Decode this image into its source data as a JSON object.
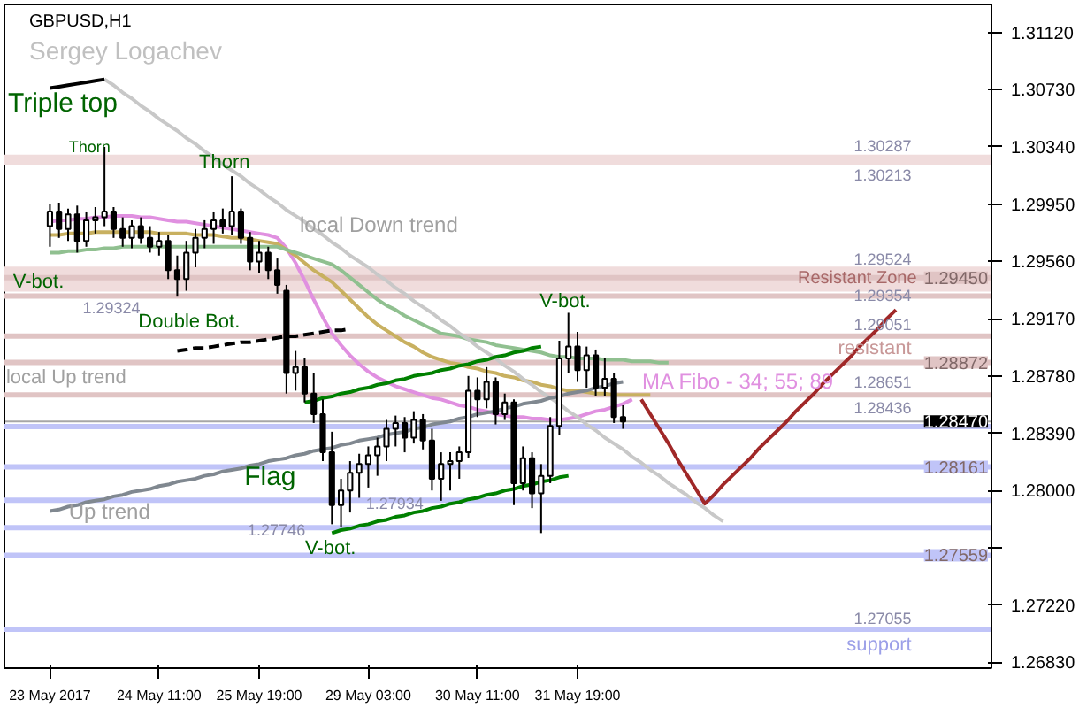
{
  "chart_data": {
    "type": "candlestick",
    "title": "GBPUSD,H1",
    "subtitle": "Sergey Logachev",
    "categories": [
      "23 May 2017",
      null,
      null,
      null,
      null,
      null,
      null,
      null,
      null,
      null,
      null,
      null,
      "24 May 11:00",
      null,
      null,
      null,
      null,
      null,
      null,
      null,
      null,
      null,
      null,
      "25 May 19:00",
      null,
      null,
      null,
      null,
      null,
      null,
      null,
      null,
      null,
      null,
      null,
      "29 May 03:00",
      null,
      null,
      null,
      null,
      null,
      null,
      null,
      null,
      null,
      null,
      null,
      "30 May 11:00",
      null,
      null,
      null,
      null,
      null,
      null,
      null,
      null,
      null,
      null,
      "31 May 19:00",
      null,
      null,
      null,
      null,
      null,
      null,
      null,
      null,
      null,
      null,
      null,
      null,
      null,
      null,
      null,
      null,
      null,
      null,
      null,
      null,
      null,
      null,
      null,
      null,
      null,
      null,
      null,
      null,
      null,
      null,
      null,
      null,
      null,
      null,
      null,
      null,
      null,
      null,
      null,
      null,
      null,
      null,
      null,
      null,
      null
    ],
    "ohlc": [
      [
        1.298,
        1.2995,
        1.2966,
        1.299
      ],
      [
        1.299,
        1.2996,
        1.2972,
        1.2978
      ],
      [
        1.2978,
        1.2992,
        1.297,
        1.2988
      ],
      [
        1.2988,
        1.2994,
        1.2962,
        1.297
      ],
      [
        1.297,
        1.299,
        1.2966,
        1.2984
      ],
      [
        1.2984,
        1.2993,
        1.2975,
        1.2986
      ],
      [
        1.2986,
        1.3034,
        1.298,
        1.299
      ],
      [
        1.299,
        1.2993,
        1.2972,
        1.2978
      ],
      [
        1.2978,
        1.2986,
        1.2966,
        1.2972
      ],
      [
        1.2972,
        1.2984,
        1.2965,
        1.298
      ],
      [
        1.298,
        1.2986,
        1.2968,
        1.2972
      ],
      [
        1.2972,
        1.298,
        1.2962,
        1.2966
      ],
      [
        1.2966,
        1.2976,
        1.296,
        1.297
      ],
      [
        1.297,
        1.2974,
        1.2944,
        1.295
      ],
      [
        1.295,
        1.296,
        1.2932,
        1.2944
      ],
      [
        1.2944,
        1.297,
        1.2936,
        1.2962
      ],
      [
        1.2962,
        1.2978,
        1.2952,
        1.2972
      ],
      [
        1.2972,
        1.2984,
        1.2965,
        1.2978
      ],
      [
        1.2978,
        1.299,
        1.2968,
        1.2984
      ],
      [
        1.2984,
        1.2992,
        1.2975,
        1.298
      ],
      [
        1.298,
        1.3014,
        1.2974,
        1.299
      ],
      [
        1.299,
        1.2992,
        1.2968,
        1.2972
      ],
      [
        1.2972,
        1.2976,
        1.295,
        1.2956
      ],
      [
        1.2956,
        1.297,
        1.2948,
        1.2962
      ],
      [
        1.2962,
        1.2966,
        1.2944,
        1.295
      ],
      [
        1.295,
        1.2958,
        1.2934,
        1.294
      ],
      [
        1.2936,
        1.294,
        1.2866,
        1.288
      ],
      [
        1.288,
        1.2895,
        1.2868,
        1.2884
      ],
      [
        1.2884,
        1.289,
        1.286,
        1.2866
      ],
      [
        1.2866,
        1.288,
        1.2846,
        1.2852
      ],
      [
        1.2852,
        1.2862,
        1.282,
        1.2826
      ],
      [
        1.2826,
        1.284,
        1.2777,
        1.279
      ],
      [
        1.279,
        1.2808,
        1.2775,
        1.28
      ],
      [
        1.28,
        1.282,
        1.2785,
        1.2812
      ],
      [
        1.2812,
        1.2825,
        1.2795,
        1.2818
      ],
      [
        1.2818,
        1.283,
        1.2802,
        1.2824
      ],
      [
        1.2824,
        1.2836,
        1.281,
        1.283
      ],
      [
        1.283,
        1.2848,
        1.282,
        1.2842
      ],
      [
        1.2842,
        1.2851,
        1.283,
        1.2846
      ],
      [
        1.2846,
        1.285,
        1.2826,
        1.2836
      ],
      [
        1.2836,
        1.2854,
        1.2832,
        1.2848
      ],
      [
        1.2848,
        1.2852,
        1.2828,
        1.2834
      ],
      [
        1.2834,
        1.2842,
        1.28,
        1.2808
      ],
      [
        1.2808,
        1.2826,
        1.2793,
        1.2818
      ],
      [
        1.2818,
        1.2826,
        1.28,
        1.282
      ],
      [
        1.282,
        1.283,
        1.2808,
        1.2826
      ],
      [
        1.2826,
        1.2878,
        1.2822,
        1.2868
      ],
      [
        1.2868,
        1.2877,
        1.285,
        1.2862
      ],
      [
        1.2862,
        1.2884,
        1.2856,
        1.2874
      ],
      [
        1.2874,
        1.2877,
        1.2845,
        1.2852
      ],
      [
        1.2852,
        1.2866,
        1.2848,
        1.286
      ],
      [
        1.286,
        1.2862,
        1.279,
        1.2805
      ],
      [
        1.2805,
        1.283,
        1.28,
        1.2822
      ],
      [
        1.2822,
        1.2826,
        1.2788,
        1.2798
      ],
      [
        1.2798,
        1.2818,
        1.2771,
        1.281
      ],
      [
        1.281,
        1.285,
        1.2805,
        1.2844
      ],
      [
        1.2844,
        1.2902,
        1.2838,
        1.289
      ],
      [
        1.289,
        1.2921,
        1.288,
        1.2898
      ],
      [
        1.2898,
        1.2908,
        1.2874,
        1.2882
      ],
      [
        1.2882,
        1.2898,
        1.287,
        1.2892
      ],
      [
        1.2892,
        1.2896,
        1.2864,
        1.287
      ],
      [
        1.287,
        1.289,
        1.2864,
        1.2876
      ],
      [
        1.2876,
        1.288,
        1.2846,
        1.285
      ],
      [
        1.285,
        1.2858,
        1.2842,
        1.2847
      ],
      null,
      null,
      null,
      null,
      null,
      null,
      null,
      null,
      null,
      null,
      null,
      null,
      null,
      null,
      null,
      null,
      null,
      null,
      null,
      null,
      null,
      null,
      null,
      null,
      null,
      null,
      null,
      null,
      null,
      null,
      null,
      null,
      null,
      null,
      null,
      null,
      null,
      null,
      null,
      null
    ],
    "series": [
      {
        "type": "line",
        "color": "#e090e0",
        "values": [
          1.2983,
          1.2984,
          1.2984,
          1.2985,
          1.2985,
          1.2986,
          1.2986,
          1.2987,
          1.2987,
          1.2987,
          1.2986,
          1.2986,
          1.2985,
          1.2984,
          1.2983,
          1.2983,
          1.2982,
          1.2981,
          1.298,
          1.2979,
          1.2978,
          1.2977,
          1.2976,
          1.2975,
          1.2974,
          1.2972,
          1.2965,
          1.2955,
          1.2943,
          1.293,
          1.2918,
          1.2907,
          1.2899,
          1.2892,
          1.2886,
          1.2881,
          1.2877,
          1.2874,
          1.2871,
          1.2869,
          1.2867,
          1.2865,
          1.2863,
          1.2862,
          1.286,
          1.2858,
          1.2857,
          1.2855,
          1.2854,
          1.2852,
          1.2851,
          1.285,
          1.285,
          1.2849,
          1.2849,
          1.2848,
          1.2848,
          1.2849,
          1.285,
          1.2852,
          1.2854,
          1.2855,
          1.2857,
          1.2859,
          1.2862,
          null,
          null,
          null,
          null,
          null,
          null,
          null,
          null,
          null,
          null,
          null,
          null,
          null,
          null,
          null,
          null,
          null,
          null,
          null,
          null,
          null,
          null,
          null,
          null,
          null,
          null,
          null,
          null,
          null,
          null,
          null,
          null,
          null,
          null,
          null,
          null,
          null,
          null,
          null
        ]
      },
      {
        "type": "line",
        "color": "#c8b060",
        "values": [
          1.2974,
          1.2974,
          1.2975,
          1.2975,
          1.2975,
          1.2976,
          1.2976,
          1.2976,
          1.2976,
          1.2976,
          1.2976,
          1.2976,
          1.2975,
          1.2975,
          1.2975,
          1.2975,
          1.2974,
          1.2974,
          1.2974,
          1.2973,
          1.2972,
          1.2972,
          1.2971,
          1.297,
          1.2969,
          1.2968,
          1.2964,
          1.296,
          1.2955,
          1.295,
          1.2946,
          1.2942,
          1.2936,
          1.293,
          1.2924,
          1.2918,
          1.2913,
          1.2909,
          1.2905,
          1.2901,
          1.2898,
          1.2894,
          1.2891,
          1.2889,
          1.2887,
          1.2886,
          1.2884,
          1.2883,
          1.2881,
          1.288,
          1.2878,
          1.2877,
          1.2875,
          1.2874,
          1.2872,
          1.2871,
          1.2869,
          1.2868,
          1.2868,
          1.2867,
          1.2866,
          1.2866,
          1.2865,
          1.2865,
          1.2865,
          1.2865,
          1.2865,
          null,
          null,
          null,
          null,
          null,
          null,
          null,
          null,
          null,
          null,
          null,
          null,
          null,
          null,
          null,
          null,
          null,
          null,
          null,
          null,
          null,
          null,
          null,
          null,
          null,
          null,
          null,
          null,
          null,
          null,
          null,
          null,
          null,
          null,
          null,
          null,
          null
        ]
      },
      {
        "type": "line",
        "color": "#90c090",
        "values": [
          1.2962,
          1.2962,
          1.2963,
          1.2963,
          1.2964,
          1.2964,
          1.2965,
          1.2965,
          1.2966,
          1.2966,
          1.2966,
          1.2966,
          1.2966,
          1.2966,
          1.2966,
          1.2966,
          1.2966,
          1.2966,
          1.2966,
          1.2966,
          1.2966,
          1.2966,
          1.2966,
          1.2966,
          1.2966,
          1.2966,
          1.2964,
          1.2962,
          1.296,
          1.2958,
          1.2956,
          1.2954,
          1.295,
          1.2945,
          1.294,
          1.2935,
          1.293,
          1.2926,
          1.2923,
          1.2919,
          1.2916,
          1.2913,
          1.291,
          1.2907,
          1.2906,
          1.2905,
          1.2903,
          1.2902,
          1.2901,
          1.2899,
          1.2898,
          1.2897,
          1.2896,
          1.2895,
          1.2894,
          1.2892,
          1.2891,
          1.2891,
          1.289,
          1.289,
          1.289,
          1.2889,
          1.2889,
          1.2889,
          1.2888,
          1.2888,
          1.2888,
          1.2887,
          1.2887,
          null,
          null,
          null,
          null,
          null,
          null,
          null,
          null,
          null,
          null,
          null,
          null,
          null,
          null,
          null,
          null,
          null,
          null,
          null,
          null,
          null,
          null,
          null,
          null,
          null,
          null,
          null,
          null,
          null,
          null,
          null,
          null,
          null,
          null,
          null
        ]
      },
      {
        "type": "line",
        "color": "#c8c8c8",
        "values": [
          null,
          null,
          null,
          null,
          null,
          null,
          1.308,
          1.3076,
          1.3071,
          1.3067,
          1.3062,
          1.3058,
          1.3053,
          1.3049,
          1.3045,
          1.304,
          1.3036,
          1.3031,
          1.3027,
          1.3022,
          1.3018,
          1.3014,
          1.3009,
          1.3005,
          1.3,
          1.2996,
          1.2991,
          1.2987,
          1.2983,
          1.2978,
          1.2974,
          1.2969,
          1.2965,
          1.296,
          1.2956,
          1.2952,
          1.2947,
          1.2943,
          1.2938,
          1.2934,
          1.2929,
          1.2925,
          1.2921,
          1.2916,
          1.2912,
          1.2907,
          1.2903,
          1.2898,
          1.2894,
          1.289,
          1.2885,
          1.2881,
          1.2876,
          1.2872,
          1.2867,
          1.2863,
          1.2859,
          1.2854,
          1.285,
          1.2845,
          1.2841,
          1.2836,
          1.2832,
          1.2828,
          1.2823,
          1.2819,
          1.2814,
          1.281,
          1.2805,
          1.2801,
          1.2797,
          1.2792,
          1.2788,
          1.2783,
          1.2779,
          null,
          null,
          null,
          null,
          null,
          null,
          null,
          null,
          null,
          null,
          null,
          null,
          null,
          null,
          null,
          null,
          null,
          null,
          null,
          null,
          null,
          null,
          null,
          null,
          null,
          null,
          null,
          null,
          null
        ]
      },
      {
        "type": "line",
        "color": "#000000",
        "values": [
          1.3074,
          1.3075,
          1.3076,
          1.3077,
          1.3078,
          1.3079,
          1.308,
          null,
          null,
          null,
          null,
          null,
          null,
          null,
          null,
          null,
          null,
          null,
          null,
          null,
          null,
          null,
          null,
          null,
          null,
          null,
          null,
          null,
          null,
          null,
          null,
          null,
          null,
          null,
          null,
          null,
          null,
          null,
          null,
          null,
          null,
          null,
          null,
          null,
          null,
          null,
          null,
          null,
          null,
          null,
          null,
          null,
          null,
          null,
          null,
          null,
          null,
          null,
          null,
          null,
          null,
          null,
          null,
          null,
          null,
          null,
          null,
          null,
          null,
          null,
          null,
          null,
          null,
          null,
          null,
          null,
          null,
          null,
          null,
          null,
          null,
          null,
          null,
          null,
          null,
          null,
          null,
          null,
          null,
          null,
          null,
          null,
          null,
          null,
          null,
          null,
          null,
          null,
          null,
          null,
          null,
          null,
          null,
          null
        ]
      },
      {
        "type": "line",
        "color": "#000000",
        "line_style": "dashed",
        "values": [
          null,
          null,
          null,
          null,
          null,
          null,
          null,
          null,
          null,
          null,
          null,
          null,
          null,
          null,
          1.2895,
          1.2896,
          1.2897,
          1.2897,
          1.2898,
          1.2899,
          1.29,
          1.2901,
          1.2901,
          1.2902,
          1.2903,
          1.2904,
          1.2905,
          1.2905,
          1.2906,
          1.2907,
          1.2908,
          1.2909,
          1.2909,
          1.291,
          null,
          null,
          null,
          null,
          null,
          null,
          null,
          null,
          null,
          null,
          null,
          null,
          null,
          null,
          null,
          null,
          null,
          null,
          null,
          null,
          null,
          null,
          null,
          null,
          null,
          null,
          null,
          null,
          null,
          null,
          null,
          null,
          null,
          null,
          null,
          null,
          null,
          null,
          null,
          null,
          null,
          null,
          null,
          null,
          null,
          null,
          null,
          null,
          null,
          null,
          null,
          null,
          null,
          null,
          null,
          null,
          null,
          null,
          null,
          null,
          null,
          null,
          null,
          null,
          null,
          null,
          null,
          null,
          null,
          null
        ]
      },
      {
        "type": "line",
        "color": "#808890",
        "values": [
          1.2786,
          1.2787,
          1.2789,
          1.279,
          1.2792,
          1.2793,
          1.2794,
          1.2796,
          1.2797,
          1.2799,
          1.28,
          1.2801,
          1.2803,
          1.2804,
          1.2806,
          1.2807,
          1.2808,
          1.281,
          1.2811,
          1.2813,
          1.2814,
          1.2815,
          1.2817,
          1.2818,
          1.282,
          1.2821,
          1.2822,
          1.2824,
          1.2825,
          1.2827,
          1.2828,
          1.2829,
          1.2831,
          1.2832,
          1.2834,
          1.2835,
          1.2836,
          1.2838,
          1.2839,
          1.284,
          1.2842,
          1.2843,
          1.2845,
          1.2846,
          1.2847,
          1.2849,
          1.285,
          1.2852,
          1.2853,
          1.2854,
          1.2856,
          1.2857,
          1.2859,
          1.286,
          1.2861,
          1.2863,
          1.2864,
          1.2866,
          1.2867,
          1.2868,
          1.287,
          1.2871,
          1.2873,
          1.2874,
          null,
          null,
          null,
          null,
          null,
          null,
          null,
          null,
          null,
          null,
          null,
          null,
          null,
          null,
          null,
          null,
          null,
          null,
          null,
          null,
          null,
          null,
          null,
          null,
          null,
          null,
          null,
          null,
          null,
          null,
          null,
          null,
          null,
          null,
          null,
          null,
          null,
          null,
          null,
          null
        ]
      },
      {
        "type": "line",
        "color": "#008000",
        "values": [
          null,
          null,
          null,
          null,
          null,
          null,
          null,
          null,
          null,
          null,
          null,
          null,
          null,
          null,
          null,
          null,
          null,
          null,
          null,
          null,
          null,
          null,
          null,
          null,
          null,
          null,
          null,
          null,
          1.286,
          1.2861,
          1.2863,
          1.2864,
          1.2866,
          1.2867,
          1.2869,
          1.287,
          1.2872,
          1.2873,
          1.2875,
          1.2876,
          1.2878,
          1.2879,
          1.288,
          1.2882,
          1.2883,
          1.2885,
          1.2886,
          1.2888,
          1.2889,
          1.2891,
          1.2892,
          1.2894,
          1.2895,
          1.2897,
          1.2898,
          null,
          null,
          null,
          null,
          null,
          null,
          null,
          null,
          null,
          null,
          null,
          null,
          null,
          null,
          null,
          null,
          null,
          null,
          null,
          null,
          null,
          null,
          null,
          null,
          null,
          null,
          null,
          null,
          null,
          null,
          null,
          null,
          null,
          null,
          null,
          null,
          null,
          null,
          null,
          null,
          null,
          null,
          null,
          null,
          null,
          null,
          null,
          null,
          null
        ]
      },
      {
        "type": "line",
        "color": "#008000",
        "values": [
          null,
          null,
          null,
          null,
          null,
          null,
          null,
          null,
          null,
          null,
          null,
          null,
          null,
          null,
          null,
          null,
          null,
          null,
          null,
          null,
          null,
          null,
          null,
          null,
          null,
          null,
          null,
          null,
          null,
          null,
          null,
          1.2771,
          1.2773,
          1.2774,
          1.2776,
          1.2777,
          1.2779,
          1.278,
          1.2782,
          1.2783,
          1.2785,
          1.2786,
          1.2788,
          1.2789,
          1.2791,
          1.2792,
          1.2794,
          1.2795,
          1.2797,
          1.2798,
          1.28,
          1.2801,
          1.2803,
          1.2804,
          1.2806,
          1.2807,
          1.2809,
          1.281,
          null,
          null,
          null,
          null,
          null,
          null,
          null,
          null,
          null,
          null,
          null,
          null,
          null,
          null,
          null,
          null,
          null,
          null,
          null,
          null,
          null,
          null,
          null,
          null,
          null,
          null,
          null,
          null,
          null,
          null,
          null,
          null,
          null,
          null,
          null,
          null,
          null,
          null,
          null,
          null,
          null,
          null,
          null,
          null,
          null,
          null
        ]
      },
      {
        "type": "line",
        "color": "#a02828",
        "values": [
          null,
          null,
          null,
          null,
          null,
          null,
          null,
          null,
          null,
          null,
          null,
          null,
          null,
          null,
          null,
          null,
          null,
          null,
          null,
          null,
          null,
          null,
          null,
          null,
          null,
          null,
          null,
          null,
          null,
          null,
          null,
          null,
          null,
          null,
          null,
          null,
          null,
          null,
          null,
          null,
          null,
          null,
          null,
          null,
          null,
          null,
          null,
          null,
          null,
          null,
          null,
          null,
          null,
          null,
          null,
          null,
          null,
          null,
          null,
          null,
          null,
          null,
          null,
          null,
          null,
          1.2862,
          1.2852,
          1.2842,
          1.2832,
          1.2821,
          1.2811,
          1.2801,
          1.2791,
          1.2797,
          1.2804,
          1.281,
          1.2816,
          1.2822,
          1.2829,
          1.2835,
          1.2841,
          1.2847,
          1.2854,
          1.286,
          1.2866,
          1.2873,
          1.2879,
          1.2885,
          1.2891,
          1.2898,
          1.2904,
          1.291,
          1.2917,
          1.2923,
          null,
          null,
          null,
          null,
          null,
          null,
          null,
          null,
          null,
          null
        ]
      }
    ],
    "ylim": [
      1.2679,
      1.3131
    ],
    "yticks": [
      {
        "value": 1.3112,
        "label": "1.31120"
      },
      {
        "value": 1.3073,
        "label": "1.30730"
      },
      {
        "value": 1.3034,
        "label": "1.30340"
      },
      {
        "value": 1.2995,
        "label": "1.29950"
      },
      {
        "value": 1.2956,
        "label": "1.29560"
      },
      {
        "value": 1.2917,
        "label": "1.29170"
      },
      {
        "value": 1.2878,
        "label": "1.28780"
      },
      {
        "value": 1.2839,
        "label": "1.28390"
      },
      {
        "value": 1.28,
        "label": "1.28000"
      },
      {
        "value": 1.2761,
        "label": null
      },
      {
        "value": 1.2722,
        "label": "1.27220"
      },
      {
        "value": 1.2683,
        "label": "1.26830"
      }
    ],
    "bands": [
      {
        "axis": "y",
        "from": 1.30213,
        "to": 1.30287,
        "color": "#f0dcdc"
      },
      {
        "axis": "y",
        "from": 1.29354,
        "to": 1.29524,
        "color": "#f0dcdc",
        "label": "Resistant Zone"
      }
    ],
    "ref_lines": [
      {
        "axis": "y",
        "value": 1.2945,
        "color": "#e0c4c4",
        "label": "1.29450"
      },
      {
        "axis": "y",
        "value": 1.29324,
        "color": "#e0c4c4"
      },
      {
        "axis": "y",
        "value": 1.29051,
        "color": "#e0c4c4"
      },
      {
        "axis": "y",
        "value": 1.28872,
        "color": "#e0c4c4",
        "label": "1.28872"
      },
      {
        "axis": "y",
        "value": 1.28651,
        "color": "#e0c4c4"
      },
      {
        "axis": "y",
        "value": 1.2847,
        "color": "#000000",
        "label": "1.28470"
      },
      {
        "axis": "y",
        "value": 1.28436,
        "color": "#c0c4f8"
      },
      {
        "axis": "y",
        "value": 1.28161,
        "color": "#c0c4f8",
        "label": "1.28161"
      },
      {
        "axis": "y",
        "value": 1.27934,
        "color": "#c0c4f8"
      },
      {
        "axis": "y",
        "value": 1.27746,
        "color": "#c0c4f8"
      },
      {
        "axis": "y",
        "value": 1.27559,
        "color": "#c0c4f8",
        "label": "1.27559"
      },
      {
        "axis": "y",
        "value": 1.27055,
        "color": "#c0c4f8"
      }
    ],
    "annotations": [
      "Triple top",
      "Thorn",
      "Thorn",
      "V-bot.",
      "1.29324",
      "Double Bot.",
      "local Down trend",
      "local Up trend",
      "Flag",
      "Up trend",
      "1.27746",
      "V-bot.",
      "1.27934",
      "V-bot.",
      "MA Fibo - 34; 55; 89",
      "1.30287",
      "1.30213",
      "1.29524",
      "1.29354",
      "1.29051",
      "resistant",
      "1.28651",
      "1.28436",
      "1.27055",
      "support"
    ],
    "grid": false
  }
}
